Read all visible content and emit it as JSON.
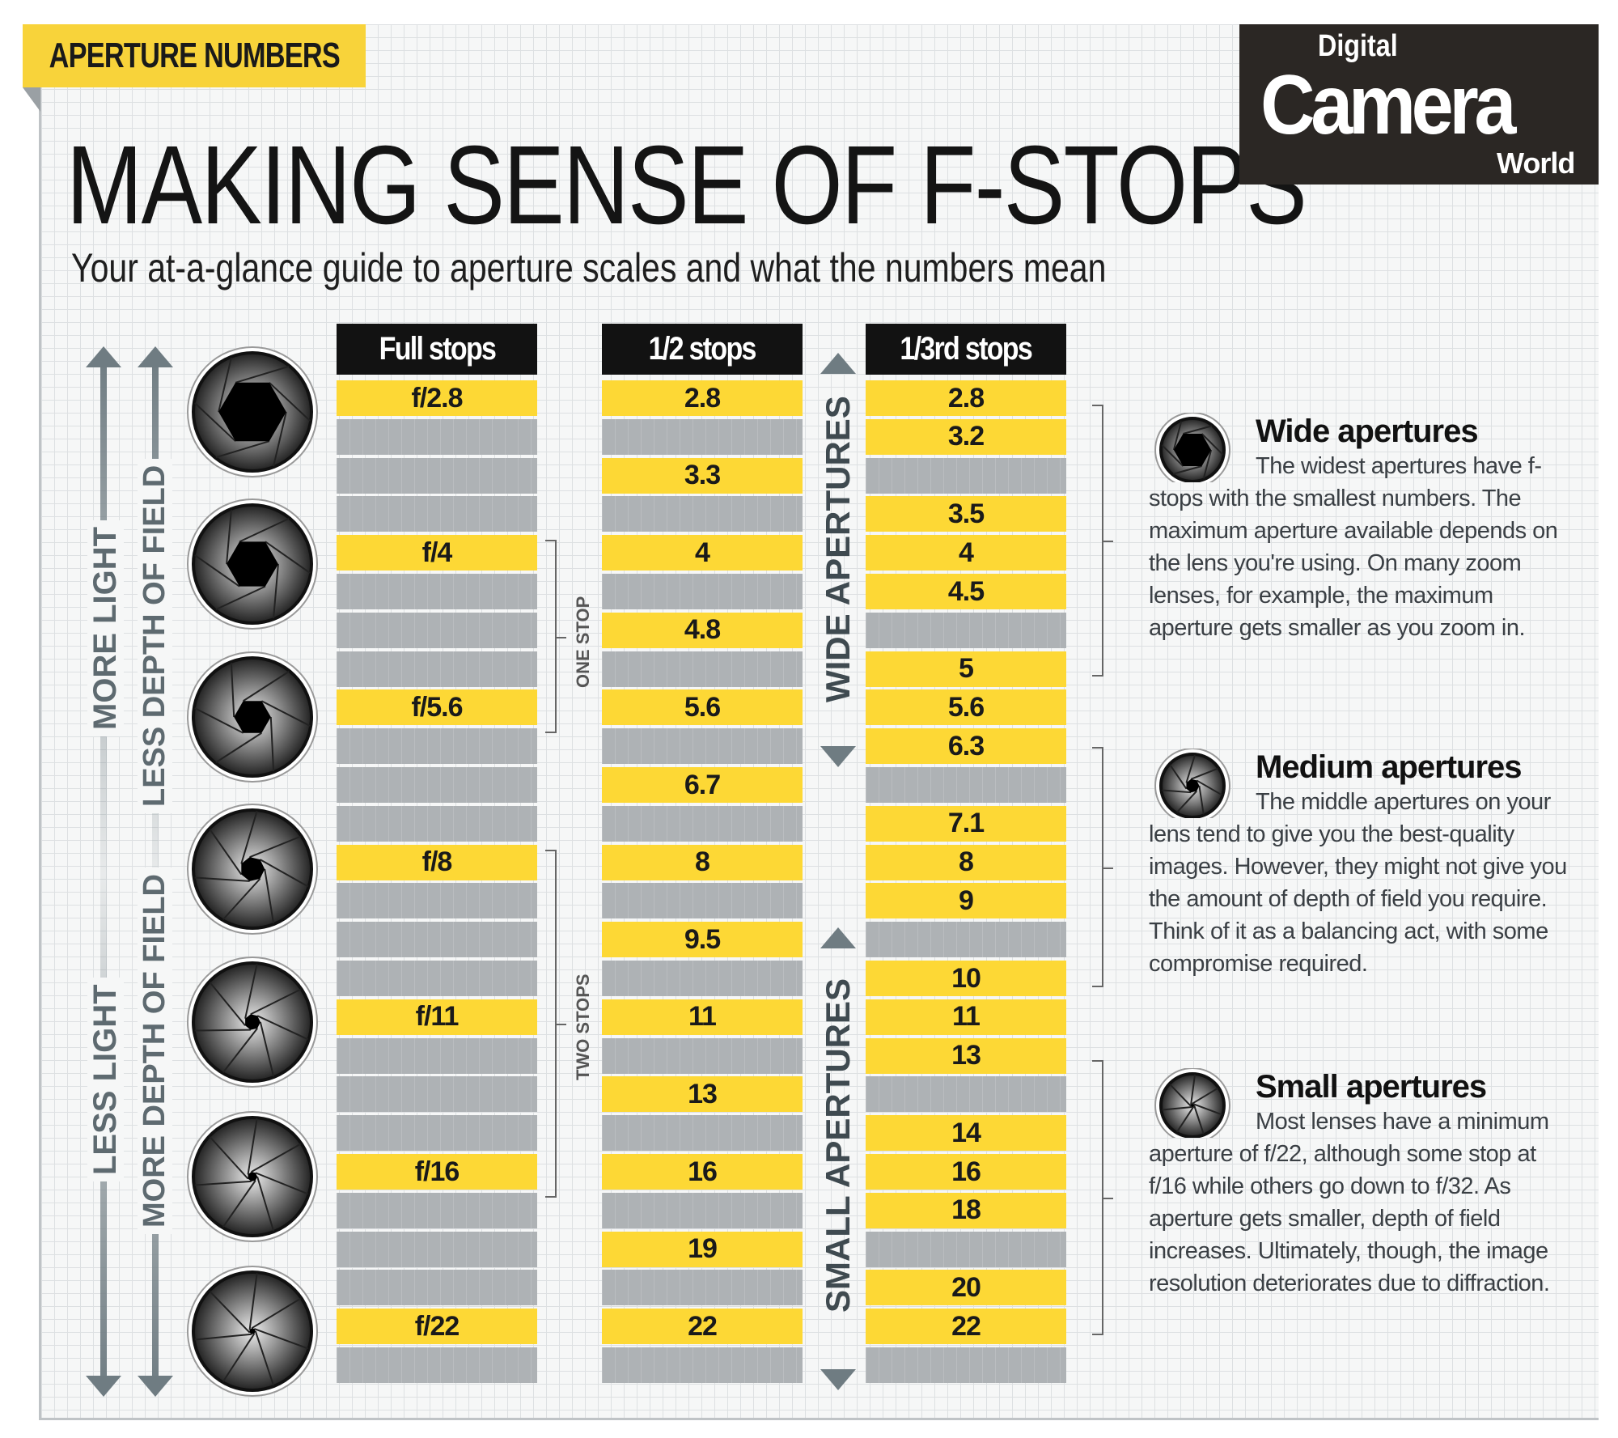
{
  "tag": "APERTURE NUMBERS",
  "title": "MAKING SENSE OF F-STOPS",
  "subtitle": "Your at-a-glance guide to aperture scales and what the numbers mean",
  "logo": {
    "top": "Digital",
    "main": "Camera",
    "bottom": "World"
  },
  "colors": {
    "yellow": "#fdd835",
    "gray": "#aeb2b5",
    "header": "#121212"
  },
  "side_labels": {
    "more_light": "MORE LIGHT",
    "less_dof": "LESS DEPTH OF FIELD",
    "less_light": "LESS LIGHT",
    "more_dof": "MORE DEPTH OF FIELD"
  },
  "columns": [
    {
      "header": "Full stops",
      "cells": [
        "f/2.8",
        "",
        "",
        "",
        "f/4",
        "",
        "",
        "",
        "f/5.6",
        "",
        "",
        "",
        "f/8",
        "",
        "",
        "",
        "f/11",
        "",
        "",
        "",
        "f/16",
        "",
        "",
        "",
        "f/22",
        ""
      ]
    },
    {
      "header": "1/2 stops",
      "cells": [
        "2.8",
        "",
        "3.3",
        "",
        "4",
        "",
        "4.8",
        "",
        "5.6",
        "",
        "6.7",
        "",
        "8",
        "",
        "9.5",
        "",
        "11",
        "",
        "13",
        "",
        "16",
        "",
        "19",
        "",
        "22",
        ""
      ]
    },
    {
      "header": "1/3rd stops",
      "cells": [
        "2.8",
        "3.2",
        "",
        "3.5",
        "4",
        "4.5",
        "",
        "5",
        "5.6",
        "6.3",
        "",
        "7.1",
        "8",
        "9",
        "",
        "10",
        "11",
        "13",
        "",
        "14",
        "16",
        "18",
        "",
        "20",
        "22",
        ""
      ]
    }
  ],
  "brackets": {
    "one_stop": "ONE STOP",
    "two_stops": "TWO STOPS"
  },
  "ranges": {
    "wide": "WIDE APERTURES",
    "small": "SMALL APERTURES"
  },
  "aperture_icons": [
    0.55,
    0.42,
    0.3,
    0.2,
    0.13,
    0.08,
    0.05
  ],
  "notes": [
    {
      "title": "Wide apertures",
      "body": "The widest apertures have f-stops with the smallest numbers. The maximum aperture available depends on the lens you're using. On many zoom lenses, for example, the maximum aperture gets smaller as you zoom in.",
      "icon": "wide-aperture-icon"
    },
    {
      "title": "Medium apertures",
      "body": "The middle apertures on your lens tend to give you the best-quality images. However, they might not give you the amount of depth of field you require. Think of it as a balancing act, with some compromise required.",
      "icon": "medium-aperture-icon"
    },
    {
      "title": "Small apertures",
      "body": "Most lenses have a minimum aperture of f/22, although some stop at f/16 while others go down to f/32. As aperture gets smaller, depth of field increases. Ultimately, though, the image resolution deteriorates due to diffraction.",
      "icon": "small-aperture-icon"
    }
  ]
}
